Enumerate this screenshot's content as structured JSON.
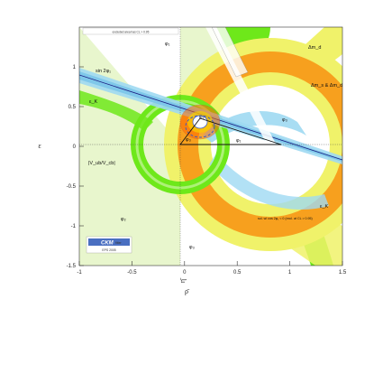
{
  "chart_data": {
    "type": "contour",
    "xlabel": "ρ̄",
    "ylabel": "η̄",
    "xlim": [
      -1,
      1.5
    ],
    "ylim": [
      -1.5,
      1.5
    ],
    "x_ticks": [
      -1,
      -0.5,
      0,
      0.5,
      1,
      1.5
    ],
    "y_ticks": [
      -1.5,
      -1,
      -0.5,
      0,
      0.5,
      1
    ],
    "x_tick_labels": [
      "-1",
      "-0.5",
      "0",
      "0.5",
      "1",
      "1.5"
    ],
    "y_tick_labels": [
      "-1.5",
      "-1",
      "-0.5",
      "0",
      "0.5",
      "1"
    ],
    "top_legend": "excluded area has CL > 0.95",
    "constraints": [
      {
        "label": "Δm_d",
        "color": "#f7a01e"
      },
      {
        "label": "Δm_s & Δm_d",
        "color": "#f7a01e"
      },
      {
        "label": "ε_K",
        "color": "#6ee81a"
      },
      {
        "label": "|V_ub/V_cb|",
        "color": "#6ee81a"
      },
      {
        "label": "sin 2φ₁",
        "color": "#9fd9f2"
      },
      {
        "label": "φ₁",
        "color": "#f5f5f5"
      },
      {
        "label": "φ₂",
        "color": "#e0f0c0"
      },
      {
        "label": "φ₃",
        "color": "#f0f26a"
      },
      {
        "label": "sol. w/ cos 2φ₁ < 0 (excl. at CL > 0.95)",
        "color": "#9fd9f2"
      }
    ],
    "angle_labels": {
      "phi1": "φ₁",
      "phi2": "φ₂",
      "phi3": "φ₃"
    },
    "apex": {
      "x": 0.14,
      "y": 0.34
    },
    "logo": {
      "text": "CKM",
      "subtitle": "fitter",
      "tag": "EPS 2005"
    },
    "axis_marker": "ε"
  }
}
